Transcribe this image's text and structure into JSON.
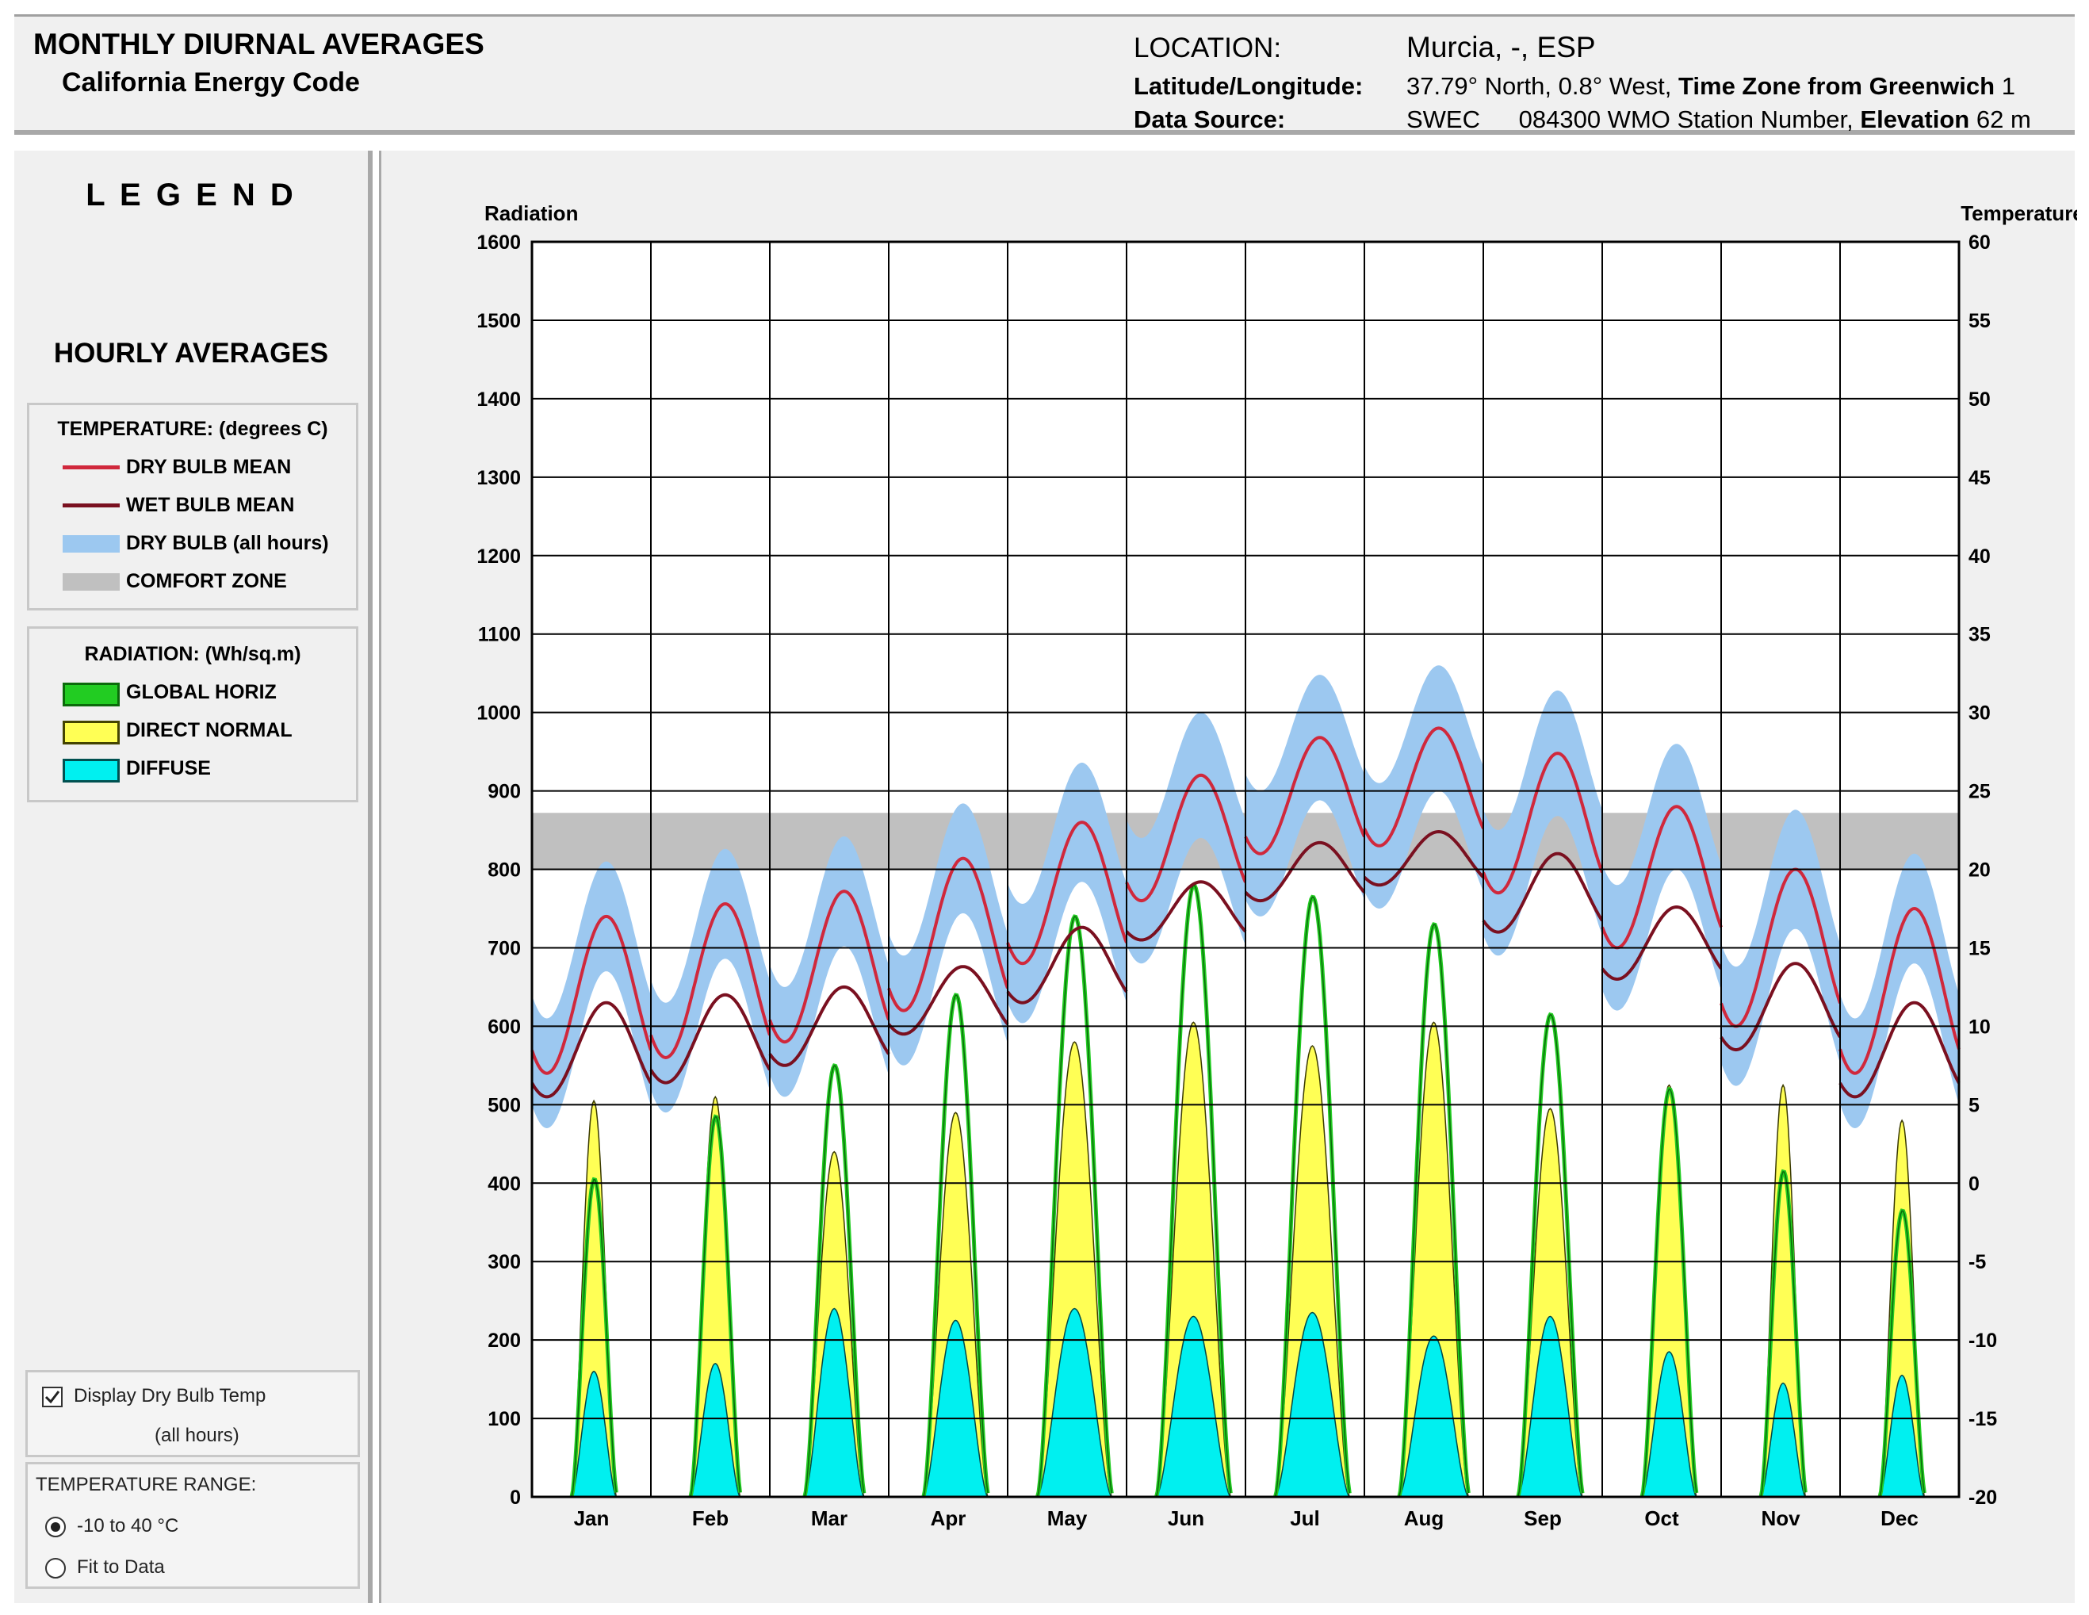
{
  "header": {
    "title": "MONTHLY DIURNAL AVERAGES",
    "subtitle": "California Energy Code",
    "location_label": "LOCATION:",
    "location_value": "Murcia, -, ESP",
    "latlon_label": "Latitude/Longitude:",
    "latlon_value": "37.79° North, 0.8° West,",
    "timezone_label": "Time Zone from Greenwich",
    "timezone_value": "1",
    "source_label": "Data Source:",
    "source_value": "SWEC",
    "station_value": "084300 WMO Station Number,",
    "elevation_label": "Elevation",
    "elevation_value": "62 m"
  },
  "legend": {
    "title": "L E G E N D",
    "subtitle": "HOURLY AVERAGES",
    "temperature_header": "TEMPERATURE: (degrees C)",
    "temperature_items": [
      {
        "label": "DRY BULB MEAN",
        "color": "#d0283c"
      },
      {
        "label": "WET BULB MEAN",
        "color": "#7a1020"
      },
      {
        "label": "DRY BULB (all hours)",
        "color": "#9cc8f0"
      },
      {
        "label": "COMFORT ZONE",
        "color": "#c0c0c0"
      }
    ],
    "radiation_header": "RADIATION: (Wh/sq.m)",
    "radiation_items": [
      {
        "label": "GLOBAL HORIZ",
        "color": "#22cc22"
      },
      {
        "label": "DIRECT NORMAL",
        "color": "#ffff55"
      },
      {
        "label": "DIFFUSE",
        "color": "#00f0f0"
      }
    ]
  },
  "controls": {
    "display_drybulb_label": "Display Dry Bulb Temp",
    "display_drybulb_sub": "(all hours)",
    "display_drybulb_checked": true,
    "temp_range_label": "TEMPERATURE RANGE:",
    "range_option_1": "-10 to 40 °C",
    "range_option_2": "Fit to Data",
    "selected_range": "-10 to 40 °C"
  },
  "chart_data": {
    "type": "line",
    "left_axis_label": "Radiation",
    "right_axis_label": "Temperature",
    "left_ylim": [
      0,
      1600
    ],
    "left_ticks": [
      0,
      100,
      200,
      300,
      400,
      500,
      600,
      700,
      800,
      900,
      1000,
      1100,
      1200,
      1300,
      1400,
      1500,
      1600
    ],
    "right_ylim": [
      -20,
      60
    ],
    "right_ticks": [
      -20,
      -15,
      -10,
      -5,
      0,
      5,
      10,
      15,
      20,
      25,
      30,
      35,
      40,
      45,
      50,
      55,
      60
    ],
    "months": [
      "Jan",
      "Feb",
      "Mar",
      "Apr",
      "May",
      "Jun",
      "Jul",
      "Aug",
      "Sep",
      "Oct",
      "Nov",
      "Dec"
    ],
    "comfort_zone_c": [
      {
        "month": "Jan",
        "min": 20,
        "max": 23.6
      },
      {
        "month": "Feb",
        "min": 20,
        "max": 23.6
      },
      {
        "month": "Mar",
        "min": 20,
        "max": 23.6
      },
      {
        "month": "Apr",
        "min": 20,
        "max": 23.6
      },
      {
        "month": "May",
        "min": 20,
        "max": 23.6
      },
      {
        "month": "Jun",
        "min": 20,
        "max": 23.6
      },
      {
        "month": "Jul",
        "min": 20,
        "max": 23.6
      },
      {
        "month": "Aug",
        "min": 20,
        "max": 23.6
      },
      {
        "month": "Sep",
        "min": 20,
        "max": 23.6
      },
      {
        "month": "Oct",
        "min": 20,
        "max": 23.6
      },
      {
        "month": "Nov",
        "min": 20,
        "max": 23.6
      },
      {
        "month": "Dec",
        "min": 20,
        "max": 23.6
      }
    ],
    "dry_bulb_min_c": [
      7,
      8,
      9,
      11,
      14,
      18,
      21,
      21.5,
      18.5,
      15,
      10,
      7
    ],
    "dry_bulb_max_c": [
      17,
      17.8,
      18.6,
      20.7,
      23,
      26,
      28.4,
      29,
      27.4,
      24,
      20,
      17.5
    ],
    "dry_bulb_spread_c": [
      3.5,
      3.5,
      3.5,
      3.5,
      3.8,
      4,
      4,
      4,
      4,
      4,
      3.8,
      3.5
    ],
    "wet_bulb_min_c": [
      5.5,
      6.4,
      7.5,
      9.5,
      11.5,
      15.5,
      18,
      19,
      16,
      13,
      8.5,
      5.5
    ],
    "wet_bulb_max_c": [
      11.5,
      12,
      12.5,
      13.8,
      16.3,
      19.2,
      21.7,
      22.4,
      21,
      17.6,
      14,
      11.5
    ],
    "global_horiz_peak": [
      405,
      485,
      550,
      640,
      740,
      780,
      765,
      730,
      615,
      520,
      415,
      365
    ],
    "direct_normal_peak": [
      505,
      510,
      440,
      490,
      580,
      605,
      575,
      605,
      495,
      525,
      525,
      480
    ],
    "diffuse_peak": [
      160,
      170,
      240,
      225,
      240,
      230,
      235,
      205,
      230,
      185,
      145,
      155
    ],
    "sunrise_hour": [
      8,
      8,
      7,
      7,
      6,
      6,
      6,
      7,
      7,
      8,
      8,
      8
    ],
    "sunset_hour": [
      17,
      18,
      19,
      20,
      21,
      21,
      21,
      21,
      20,
      19,
      17,
      17
    ]
  },
  "colors": {
    "panel": "#f0f0f0",
    "grid": "#000000",
    "comfort": "#c0c0c0",
    "drybulb_band": "#9cc8f0",
    "drybulb_mean": "#d0283c",
    "wetbulb_mean": "#7a1020",
    "global": "#22cc22",
    "global_dark": "#0a6a0a",
    "direct": "#ffff55",
    "diffuse": "#00f0f0"
  }
}
